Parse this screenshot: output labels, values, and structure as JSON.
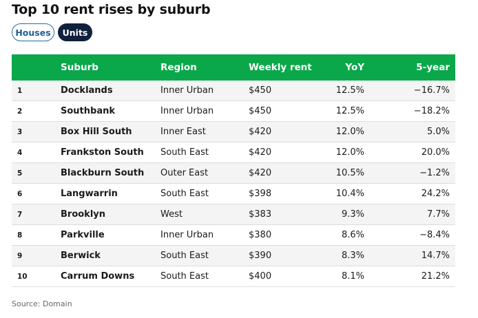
{
  "title": "Top 10 rent rises by suburb",
  "tabs": {
    "houses": "Houses",
    "units": "Units",
    "active": "units"
  },
  "colors": {
    "header_bg": "#0aa84a",
    "active_tab": "#11213d",
    "inactive_tab_border": "#1e6fa8"
  },
  "source": "Source: Domain",
  "chart_data": {
    "type": "table",
    "columns": [
      "",
      "Suburb",
      "Region",
      "Weekly rent",
      "YoY",
      "5-year"
    ],
    "rows": [
      {
        "rank": "1",
        "suburb": "Docklands",
        "region": "Inner Urban",
        "rent": "$450",
        "yoy": "12.5%",
        "five_year": "−16.7%"
      },
      {
        "rank": "2",
        "suburb": "Southbank",
        "region": "Inner Urban",
        "rent": "$450",
        "yoy": "12.5%",
        "five_year": "−18.2%"
      },
      {
        "rank": "3",
        "suburb": "Box Hill South",
        "region": "Inner East",
        "rent": "$420",
        "yoy": "12.0%",
        "five_year": "5.0%"
      },
      {
        "rank": "4",
        "suburb": "Frankston South",
        "region": "South East",
        "rent": "$420",
        "yoy": "12.0%",
        "five_year": "20.0%"
      },
      {
        "rank": "5",
        "suburb": "Blackburn South",
        "region": "Outer East",
        "rent": "$420",
        "yoy": "10.5%",
        "five_year": "−1.2%"
      },
      {
        "rank": "6",
        "suburb": "Langwarrin",
        "region": "South East",
        "rent": "$398",
        "yoy": "10.4%",
        "five_year": "24.2%"
      },
      {
        "rank": "7",
        "suburb": "Brooklyn",
        "region": "West",
        "rent": "$383",
        "yoy": "9.3%",
        "five_year": "7.7%"
      },
      {
        "rank": "8",
        "suburb": "Parkville",
        "region": "Inner Urban",
        "rent": "$380",
        "yoy": "8.6%",
        "five_year": "−8.4%"
      },
      {
        "rank": "9",
        "suburb": "Berwick",
        "region": "South East",
        "rent": "$390",
        "yoy": "8.3%",
        "five_year": "14.7%"
      },
      {
        "rank": "10",
        "suburb": "Carrum Downs",
        "region": "South East",
        "rent": "$400",
        "yoy": "8.1%",
        "five_year": "21.2%"
      }
    ]
  }
}
